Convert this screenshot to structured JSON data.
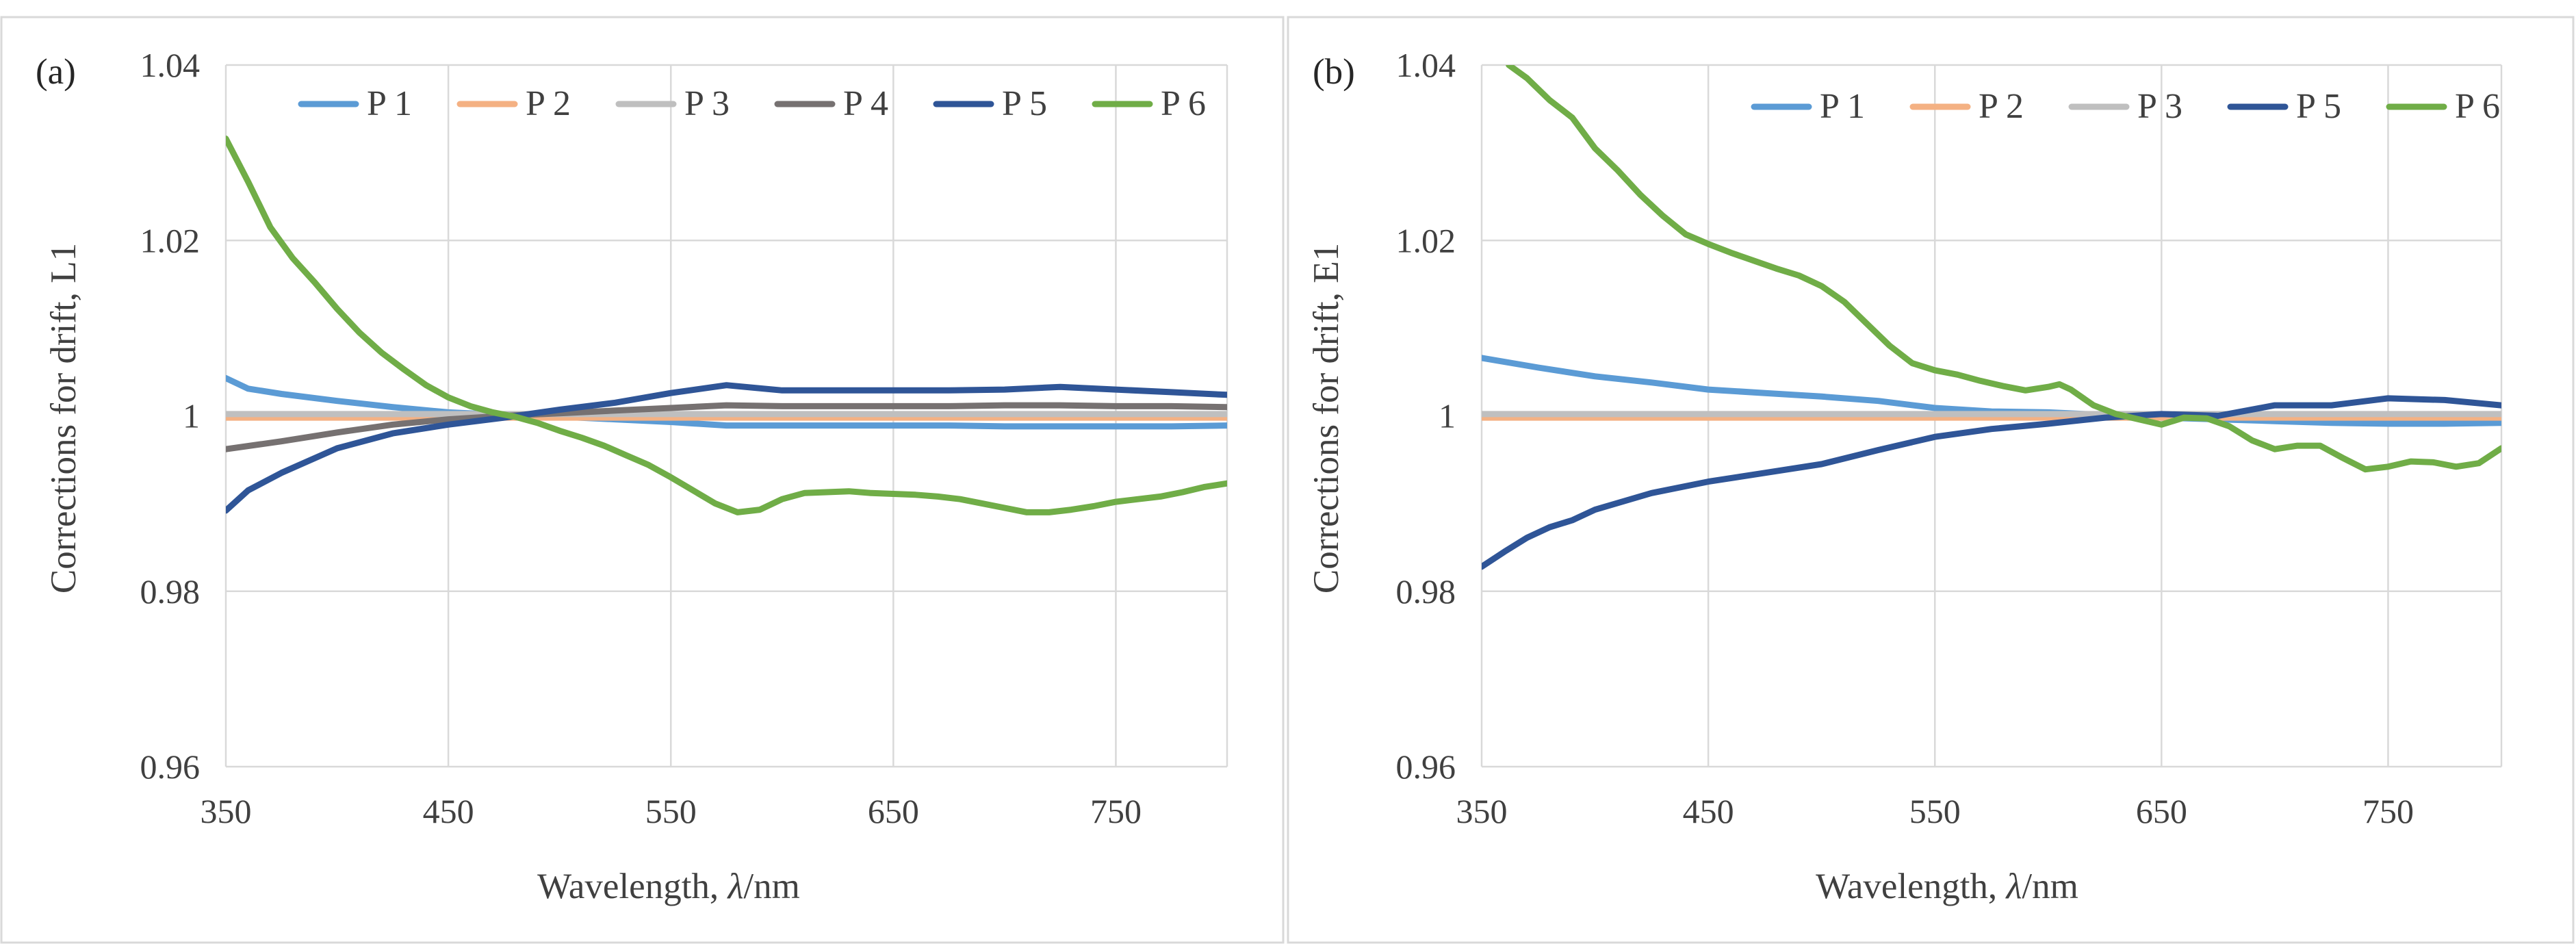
{
  "chart_data": [
    {
      "type": "line",
      "panel_label": "(a)",
      "xlabel_prefix": "Wavelength, ",
      "xlabel_symbol": "λ",
      "xlabel_suffix": "/nm",
      "ylabel": "Corrections for drift, L1",
      "xlim": [
        350,
        800
      ],
      "ylim": [
        0.96,
        1.04
      ],
      "xticks": [
        "350",
        "450",
        "550",
        "650",
        "750"
      ],
      "xtick_values": [
        350,
        450,
        550,
        650,
        750
      ],
      "yticks": [
        "0.96",
        "0.98",
        "1",
        "1.02",
        "1.04"
      ],
      "ytick_values": [
        0.96,
        0.98,
        1.0,
        1.02,
        1.04
      ],
      "grid": "vertical and horizontal",
      "legend_position": "top",
      "series": [
        {
          "name": "P 1",
          "color": "#5b9bd5",
          "x": [
            350,
            360,
            375,
            400,
            425,
            450,
            475,
            500,
            525,
            550,
            575,
            600,
            625,
            650,
            675,
            700,
            725,
            750,
            775,
            800
          ],
          "y": [
            1.0043,
            1.0031,
            1.0025,
            1.0017,
            1.001,
            1.0004,
            1.0001,
            0.9999,
            0.9996,
            0.9993,
            0.9989,
            0.9989,
            0.9989,
            0.9989,
            0.9989,
            0.9988,
            0.9988,
            0.9988,
            0.9988,
            0.9989
          ]
        },
        {
          "name": "P 2",
          "color": "#f4b183",
          "x": [
            350,
            800
          ],
          "y": [
            0.9998,
            0.9998
          ]
        },
        {
          "name": "P 3",
          "color": "#bfbfbf",
          "x": [
            350,
            800
          ],
          "y": [
            1.0002,
            1.0002
          ]
        },
        {
          "name": "P 4",
          "color": "#767171",
          "x": [
            350,
            375,
            400,
            425,
            450,
            475,
            500,
            525,
            550,
            575,
            600,
            625,
            650,
            675,
            700,
            725,
            750,
            775,
            800
          ],
          "y": [
            0.9962,
            0.9971,
            0.9981,
            0.999,
            0.9996,
            1.0,
            1.0003,
            1.0006,
            1.0009,
            1.0012,
            1.0011,
            1.0011,
            1.0011,
            1.0011,
            1.0012,
            1.0012,
            1.0011,
            1.0011,
            1.001
          ]
        },
        {
          "name": "P 5",
          "color": "#2f5597",
          "x": [
            350,
            360,
            375,
            400,
            425,
            450,
            475,
            500,
            525,
            550,
            575,
            600,
            625,
            650,
            675,
            700,
            725,
            750,
            775,
            800
          ],
          "y": [
            0.9892,
            0.9915,
            0.9935,
            0.9963,
            0.998,
            0.999,
            0.9998,
            1.0007,
            1.0015,
            1.0026,
            1.0035,
            1.0029,
            1.0029,
            1.0029,
            1.0029,
            1.003,
            1.0033,
            1.003,
            1.0027,
            1.0024
          ]
        },
        {
          "name": "P 6",
          "color": "#70ad47",
          "x": [
            350,
            360,
            370,
            380,
            390,
            400,
            410,
            420,
            430,
            440,
            450,
            460,
            470,
            480,
            490,
            500,
            510,
            520,
            530,
            540,
            550,
            560,
            570,
            580,
            590,
            600,
            610,
            620,
            630,
            640,
            650,
            660,
            670,
            680,
            690,
            700,
            710,
            720,
            730,
            740,
            750,
            760,
            770,
            780,
            790,
            800
          ],
          "y": [
            1.0316,
            1.0267,
            1.0215,
            1.018,
            1.0152,
            1.0122,
            1.0095,
            1.0072,
            1.0053,
            1.0035,
            1.0021,
            1.0011,
            1.0004,
            0.9999,
            0.9992,
            0.9983,
            0.9975,
            0.9966,
            0.9955,
            0.9944,
            0.993,
            0.9915,
            0.99,
            0.989,
            0.9893,
            0.9905,
            0.9912,
            0.9913,
            0.9914,
            0.9912,
            0.9911,
            0.991,
            0.9908,
            0.9905,
            0.99,
            0.9895,
            0.989,
            0.989,
            0.9893,
            0.9897,
            0.9902,
            0.9905,
            0.9908,
            0.9913,
            0.9919,
            0.9923
          ]
        }
      ]
    },
    {
      "type": "line",
      "panel_label": "(b)",
      "xlabel_prefix": "Wavelength, ",
      "xlabel_symbol": "λ",
      "xlabel_suffix": "/nm",
      "ylabel": "Corrections for drift, E1",
      "xlim": [
        350,
        800
      ],
      "ylim": [
        0.96,
        1.04
      ],
      "xticks": [
        "350",
        "450",
        "550",
        "650",
        "750"
      ],
      "xtick_values": [
        350,
        450,
        550,
        650,
        750
      ],
      "yticks": [
        "0.96",
        "0.98",
        "1",
        "1.02",
        "1.04"
      ],
      "ytick_values": [
        0.96,
        0.98,
        1.0,
        1.02,
        1.04
      ],
      "grid": "vertical and horizontal",
      "legend_position": "top-right",
      "series": [
        {
          "name": "P 1",
          "color": "#5b9bd5",
          "x": [
            350,
            375,
            400,
            425,
            450,
            475,
            500,
            525,
            550,
            575,
            600,
            625,
            650,
            675,
            700,
            725,
            750,
            775,
            800
          ],
          "y": [
            1.0066,
            1.0055,
            1.0045,
            1.0038,
            1.003,
            1.0026,
            1.0022,
            1.0017,
            1.0009,
            1.0005,
            1.0004,
            1.0001,
            0.9998,
            0.9996,
            0.9994,
            0.9992,
            0.9991,
            0.9991,
            0.9992
          ]
        },
        {
          "name": "P 2",
          "color": "#f4b183",
          "x": [
            350,
            800
          ],
          "y": [
            0.9998,
            0.9998
          ]
        },
        {
          "name": "P 3",
          "color": "#bfbfbf",
          "x": [
            350,
            800
          ],
          "y": [
            1.0002,
            1.0002
          ]
        },
        {
          "name": "P 5",
          "color": "#2f5597",
          "x": [
            350,
            360,
            370,
            380,
            390,
            400,
            425,
            450,
            475,
            500,
            525,
            550,
            575,
            600,
            625,
            650,
            675,
            700,
            725,
            750,
            775,
            800
          ],
          "y": [
            0.9828,
            0.9845,
            0.9861,
            0.9873,
            0.9881,
            0.9893,
            0.9912,
            0.9925,
            0.9935,
            0.9945,
            0.9961,
            0.9976,
            0.9985,
            0.9991,
            0.9998,
            1.0002,
            1.0,
            1.0012,
            1.0012,
            1.002,
            1.0018,
            1.0012
          ]
        },
        {
          "name": "P 6",
          "color": "#70ad47",
          "x": [
            362,
            370,
            380,
            390,
            400,
            410,
            420,
            430,
            440,
            450,
            460,
            470,
            480,
            490,
            500,
            510,
            520,
            530,
            540,
            550,
            560,
            570,
            580,
            590,
            600,
            605,
            610,
            620,
            630,
            640,
            650,
            660,
            670,
            680,
            690,
            700,
            710,
            720,
            730,
            740,
            750,
            760,
            770,
            780,
            790,
            800
          ],
          "y": [
            1.04,
            1.0385,
            1.036,
            1.034,
            1.0305,
            1.028,
            1.0252,
            1.0228,
            1.0207,
            1.0196,
            1.0186,
            1.0177,
            1.0168,
            1.016,
            1.0148,
            1.013,
            1.0105,
            1.008,
            1.006,
            1.0052,
            1.0047,
            1.004,
            1.0034,
            1.0029,
            1.0033,
            1.0036,
            1.003,
            1.0012,
            1.0002,
            0.9996,
            0.999,
            0.9998,
            0.9997,
            0.9988,
            0.9972,
            0.9962,
            0.9966,
            0.9966,
            0.9952,
            0.9939,
            0.9942,
            0.9948,
            0.9947,
            0.9942,
            0.9946,
            0.9963
          ]
        }
      ]
    }
  ]
}
